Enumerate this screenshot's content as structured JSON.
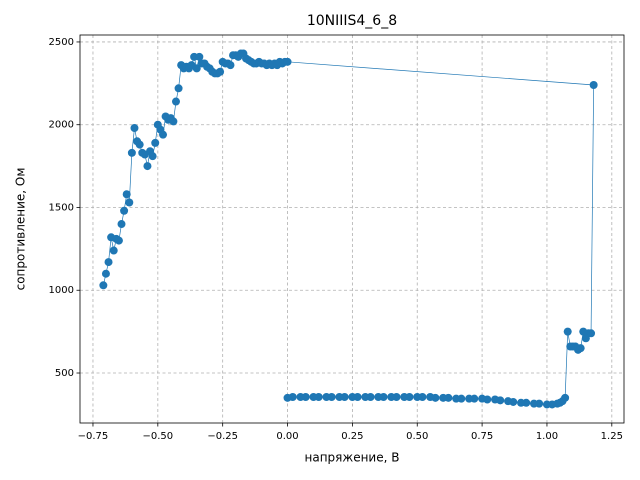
{
  "chart_data": {
    "type": "line",
    "title": "10NIIIS4_6_8",
    "x_label": "напряжение, В",
    "y_label": "сопротивление, Ом",
    "xlim": [
      -0.8,
      1.297
    ],
    "ylim": [
      198,
      2542
    ],
    "xticks": [
      {
        "value": -0.75,
        "label": "−0.75"
      },
      {
        "value": -0.5,
        "label": "−0.50"
      },
      {
        "value": -0.25,
        "label": "−0.25"
      },
      {
        "value": 0,
        "label": "0.00"
      },
      0.25,
      {
        "value": 0.5,
        "label": "0.50"
      },
      0.75,
      {
        "value": 1,
        "label": "1.00"
      },
      1.25
    ],
    "yticks": [
      500,
      1000,
      1500,
      2000,
      2500
    ],
    "grid": true,
    "x": [
      -0.71,
      -0.7,
      -0.69,
      -0.68,
      -0.67,
      -0.66,
      -0.65,
      -0.64,
      -0.63,
      -0.62,
      -0.61,
      -0.6,
      -0.59,
      -0.58,
      -0.57,
      -0.56,
      -0.55,
      -0.54,
      -0.53,
      -0.52,
      -0.51,
      -0.5,
      -0.49,
      -0.48,
      -0.47,
      -0.46,
      -0.45,
      -0.44,
      -0.43,
      -0.42,
      -0.41,
      -0.4,
      -0.39,
      -0.38,
      -0.37,
      -0.36,
      -0.35,
      -0.34,
      -0.33,
      -0.32,
      -0.31,
      -0.3,
      -0.29,
      -0.28,
      -0.27,
      -0.26,
      -0.25,
      -0.24,
      -0.23,
      -0.22,
      -0.21,
      -0.2,
      -0.19,
      -0.18,
      -0.17,
      -0.16,
      -0.15,
      -0.14,
      -0.13,
      -0.12,
      -0.11,
      -0.1,
      -0.09,
      -0.08,
      -0.07,
      -0.06,
      -0.05,
      -0.04,
      -0.03,
      -0.02,
      -0.01,
      0.0,
      1.18,
      1.17,
      1.16,
      1.15,
      1.14,
      1.13,
      1.12,
      1.11,
      1.1,
      1.09,
      1.08,
      1.07,
      1.06,
      1.05,
      1.04,
      1.02,
      1.0,
      0.97,
      0.95,
      0.92,
      0.9,
      0.87,
      0.85,
      0.82,
      0.8,
      0.77,
      0.75,
      0.72,
      0.7,
      0.67,
      0.65,
      0.62,
      0.6,
      0.57,
      0.55,
      0.52,
      0.5,
      0.47,
      0.45,
      0.42,
      0.4,
      0.37,
      0.35,
      0.32,
      0.3,
      0.27,
      0.25,
      0.22,
      0.2,
      0.17,
      0.15,
      0.12,
      0.1,
      0.07,
      0.05,
      0.02,
      0.0
    ],
    "series": [
      {
        "name": "сопротивление",
        "color": "#1f77b4",
        "values": [
          1030,
          1100,
          1170,
          1320,
          1240,
          1310,
          1300,
          1400,
          1480,
          1580,
          1530,
          1830,
          1980,
          1900,
          1880,
          1830,
          1820,
          1750,
          1840,
          1810,
          1890,
          2000,
          1970,
          1940,
          2050,
          2030,
          2040,
          2020,
          2140,
          2220,
          2360,
          2340,
          2350,
          2340,
          2360,
          2410,
          2340,
          2410,
          2370,
          2370,
          2350,
          2340,
          2320,
          2310,
          2310,
          2320,
          2380,
          2370,
          2370,
          2360,
          2420,
          2420,
          2410,
          2430,
          2430,
          2400,
          2390,
          2380,
          2370,
          2370,
          2380,
          2370,
          2370,
          2360,
          2370,
          2360,
          2370,
          2360,
          2380,
          2370,
          2380,
          2380,
          2240,
          740,
          740,
          710,
          750,
          650,
          640,
          660,
          660,
          660,
          750,
          350,
          330,
          320,
          315,
          310,
          310,
          315,
          315,
          320,
          320,
          325,
          330,
          335,
          340,
          340,
          345,
          345,
          345,
          345,
          345,
          350,
          350,
          350,
          355,
          355,
          355,
          355,
          355,
          355,
          355,
          355,
          355,
          355,
          355,
          355,
          355,
          355,
          355,
          355,
          355,
          355,
          355,
          355,
          355,
          355,
          350
        ]
      }
    ]
  }
}
